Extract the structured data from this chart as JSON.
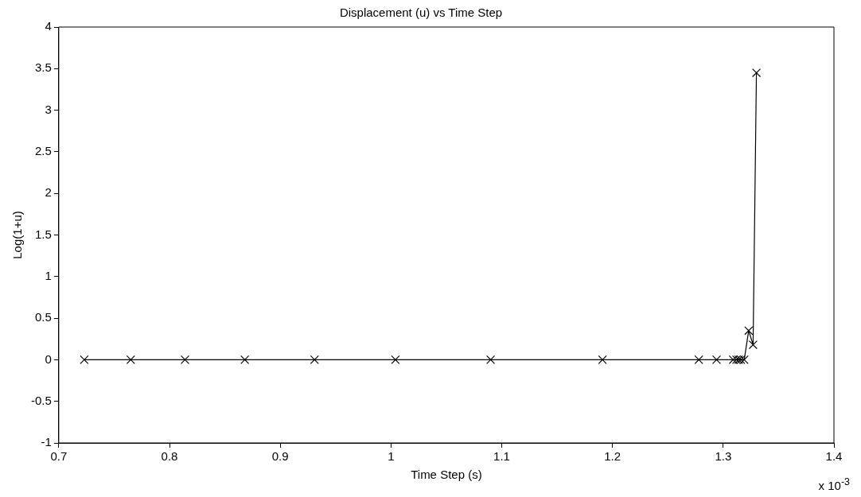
{
  "chart_data": {
    "type": "line",
    "title": "Displacement (u) vs Time Step",
    "xlabel": "Time Step (s)",
    "ylabel": "Log(1+u)",
    "x": [
      0.723,
      0.765,
      0.814,
      0.868,
      0.931,
      1.004,
      1.09,
      1.191,
      1.278,
      1.294,
      1.309,
      1.312,
      1.314,
      1.316,
      1.319,
      1.323,
      1.327,
      1.33
    ],
    "series": [
      {
        "color": "#000000",
        "values": [
          0,
          0,
          0,
          0,
          0,
          0,
          0,
          0,
          0,
          0,
          0,
          0,
          0,
          0,
          0,
          0.35,
          0.18,
          3.45
        ]
      }
    ],
    "xlim": [
      0.7,
      1.4
    ],
    "xticks": [
      0.7,
      0.8,
      0.9,
      1,
      1.1,
      1.2,
      1.3,
      1.4
    ],
    "ylim": [
      -1,
      4
    ],
    "yticks": [
      -1,
      -0.5,
      0,
      0.5,
      1,
      1.5,
      2,
      2.5,
      3,
      3.5,
      4
    ],
    "marker": "cross",
    "line_style": "solid",
    "grid": false,
    "legend": false,
    "annotations": [
      "x 10$^{-3}$"
    ]
  }
}
